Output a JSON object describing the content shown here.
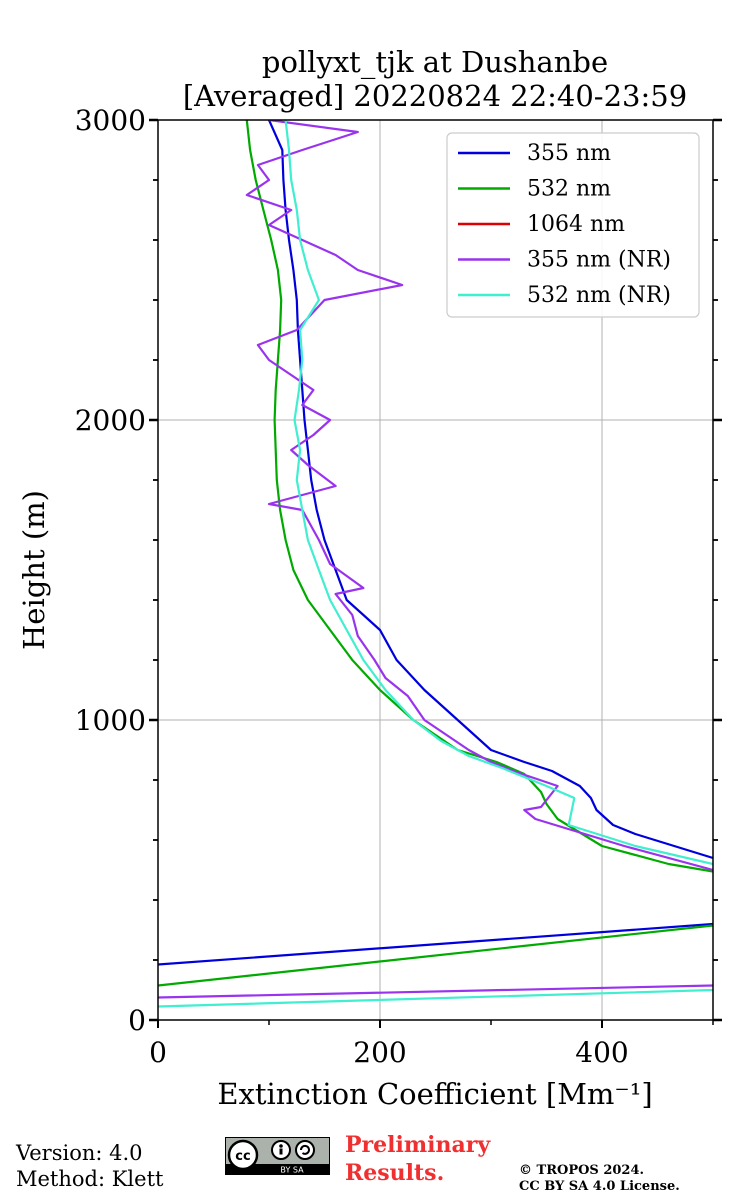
{
  "chart_data": {
    "type": "line",
    "title": "pollyxt_tjk at Dushanbe",
    "subtitle": "[Averaged] 20220824 22:40-23:59",
    "xlabel": "Extinction Coefficient [Mm⁻¹]",
    "ylabel": "Height (m)",
    "xlim": [
      0,
      500
    ],
    "ylim": [
      0,
      3000
    ],
    "xticks": [
      0,
      200,
      400
    ],
    "yticks": [
      0,
      1000,
      2000,
      3000
    ],
    "grid": true,
    "legend_position": "top-right",
    "series": [
      {
        "name": "355 nm",
        "color": "#0000dd",
        "points": [
          [
            500,
            320
          ],
          [
            0,
            185
          ],
          null,
          [
            500,
            540
          ],
          [
            430,
            620
          ],
          [
            410,
            650
          ],
          [
            395,
            700
          ],
          [
            390,
            740
          ],
          [
            380,
            780
          ],
          [
            355,
            830
          ],
          [
            330,
            860
          ],
          [
            300,
            900
          ],
          [
            270,
            1000
          ],
          [
            240,
            1100
          ],
          [
            215,
            1200
          ],
          [
            200,
            1300
          ],
          [
            185,
            1350
          ],
          [
            170,
            1400
          ],
          [
            160,
            1500
          ],
          [
            150,
            1600
          ],
          [
            143,
            1700
          ],
          [
            138,
            1800
          ],
          [
            135,
            1900
          ],
          [
            132,
            2000
          ],
          [
            130,
            2100
          ],
          [
            128,
            2200
          ],
          [
            126,
            2300
          ],
          [
            125,
            2400
          ],
          [
            122,
            2500
          ],
          [
            118,
            2600
          ],
          [
            115,
            2700
          ],
          [
            113,
            2800
          ],
          [
            112,
            2900
          ],
          [
            100,
            3000
          ]
        ]
      },
      {
        "name": "532 nm",
        "color": "#00aa00",
        "points": [
          [
            500,
            315
          ],
          [
            0,
            115
          ],
          null,
          [
            500,
            495
          ],
          [
            460,
            520
          ],
          [
            400,
            580
          ],
          [
            360,
            670
          ],
          [
            350,
            720
          ],
          [
            345,
            760
          ],
          [
            330,
            820
          ],
          [
            305,
            860
          ],
          [
            270,
            900
          ],
          [
            230,
            1000
          ],
          [
            200,
            1100
          ],
          [
            175,
            1200
          ],
          [
            155,
            1300
          ],
          [
            135,
            1400
          ],
          [
            122,
            1500
          ],
          [
            115,
            1600
          ],
          [
            110,
            1700
          ],
          [
            107,
            1800
          ],
          [
            106,
            1900
          ],
          [
            105,
            2000
          ],
          [
            106,
            2100
          ],
          [
            108,
            2200
          ],
          [
            110,
            2300
          ],
          [
            111,
            2400
          ],
          [
            108,
            2500
          ],
          [
            102,
            2600
          ],
          [
            95,
            2700
          ],
          [
            88,
            2800
          ],
          [
            83,
            2900
          ],
          [
            80,
            3000
          ]
        ]
      },
      {
        "name": "1064 nm",
        "color": "#dd0000",
        "points": []
      },
      {
        "name": "355 nm (NR)",
        "color": "#9933ee",
        "points": [
          [
            500,
            115
          ],
          [
            0,
            75
          ],
          null,
          [
            500,
            500
          ],
          [
            420,
            580
          ],
          [
            340,
            670
          ],
          [
            330,
            700
          ],
          [
            345,
            710
          ],
          [
            360,
            780
          ],
          [
            320,
            830
          ],
          [
            300,
            860
          ],
          [
            280,
            900
          ],
          [
            240,
            1000
          ],
          [
            225,
            1080
          ],
          [
            205,
            1140
          ],
          [
            195,
            1200
          ],
          [
            180,
            1280
          ],
          [
            175,
            1350
          ],
          [
            160,
            1420
          ],
          [
            185,
            1440
          ],
          [
            155,
            1520
          ],
          [
            145,
            1600
          ],
          [
            130,
            1700
          ],
          [
            100,
            1720
          ],
          [
            160,
            1780
          ],
          [
            135,
            1850
          ],
          [
            120,
            1900
          ],
          [
            140,
            1950
          ],
          [
            155,
            2000
          ],
          [
            130,
            2050
          ],
          [
            140,
            2100
          ],
          [
            120,
            2150
          ],
          [
            100,
            2200
          ],
          [
            90,
            2250
          ],
          [
            125,
            2300
          ],
          [
            150,
            2400
          ],
          [
            220,
            2450
          ],
          [
            180,
            2500
          ],
          [
            160,
            2550
          ],
          [
            130,
            2600
          ],
          [
            100,
            2650
          ],
          [
            120,
            2700
          ],
          [
            80,
            2750
          ],
          [
            100,
            2800
          ],
          [
            90,
            2850
          ],
          [
            130,
            2900
          ],
          [
            180,
            2960
          ],
          [
            100,
            3000
          ]
        ]
      },
      {
        "name": "532 nm (NR)",
        "color": "#40eed0",
        "points": [
          [
            500,
            100
          ],
          [
            0,
            45
          ],
          null,
          [
            500,
            520
          ],
          [
            430,
            580
          ],
          [
            370,
            650
          ],
          [
            375,
            740
          ],
          [
            350,
            780
          ],
          [
            310,
            840
          ],
          [
            280,
            880
          ],
          [
            255,
            930
          ],
          [
            230,
            1000
          ],
          [
            205,
            1100
          ],
          [
            185,
            1200
          ],
          [
            170,
            1300
          ],
          [
            155,
            1400
          ],
          [
            145,
            1500
          ],
          [
            135,
            1600
          ],
          [
            130,
            1700
          ],
          [
            125,
            1800
          ],
          [
            128,
            1900
          ],
          [
            123,
            2000
          ],
          [
            127,
            2100
          ],
          [
            130,
            2200
          ],
          [
            128,
            2300
          ],
          [
            145,
            2400
          ],
          [
            140,
            2450
          ],
          [
            135,
            2500
          ],
          [
            128,
            2600
          ],
          [
            125,
            2700
          ],
          [
            120,
            2800
          ],
          [
            118,
            2900
          ],
          [
            115,
            3000
          ]
        ]
      }
    ]
  },
  "footer": {
    "version": "Version: 4.0",
    "method": "Method: Klett",
    "prelim_line1": "Preliminary",
    "prelim_line2": "Results.",
    "copyright_line1": "© TROPOS 2024.",
    "copyright_line2": "CC BY SA 4.0 License.",
    "cc_badge_text": "BY SA"
  }
}
